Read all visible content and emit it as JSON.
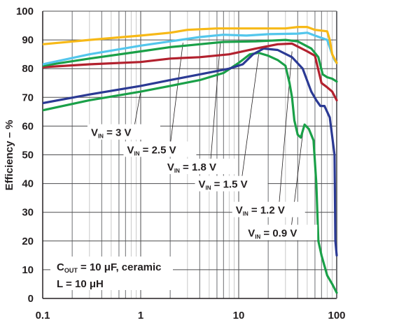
{
  "chart_data": {
    "type": "line",
    "title": "",
    "xlabel": "",
    "ylabel": "Efficiency – %",
    "xscale": "log",
    "xlim": [
      0.1,
      100
    ],
    "ylim": [
      0,
      100
    ],
    "grid": true,
    "x_ticks": [
      {
        "value": 0.1,
        "label": "0.1"
      },
      {
        "value": 1,
        "label": "1"
      },
      {
        "value": 10,
        "label": "10"
      },
      {
        "value": 100,
        "label": "100"
      }
    ],
    "y_ticks": [
      {
        "value": 0,
        "label": "0"
      },
      {
        "value": 10,
        "label": "10"
      },
      {
        "value": 20,
        "label": "20"
      },
      {
        "value": 30,
        "label": "30"
      },
      {
        "value": 40,
        "label": "40"
      },
      {
        "value": 50,
        "label": "50"
      },
      {
        "value": 60,
        "label": "60"
      },
      {
        "value": 70,
        "label": "70"
      },
      {
        "value": 80,
        "label": "80"
      },
      {
        "value": 90,
        "label": "90"
      },
      {
        "value": 100,
        "label": "100"
      }
    ],
    "series": [
      {
        "name": "VIN = 3 V",
        "sub": "IN",
        "pre": "V",
        "post": " = 3 V",
        "color": "#f7b917",
        "points": [
          [
            0.1,
            88.5
          ],
          [
            0.3,
            90
          ],
          [
            1,
            91.5
          ],
          [
            2,
            92.5
          ],
          [
            3,
            93.5
          ],
          [
            6,
            94
          ],
          [
            10,
            94
          ],
          [
            30,
            94
          ],
          [
            40,
            94.5
          ],
          [
            50,
            94.5
          ],
          [
            60,
            93.5
          ],
          [
            80,
            93
          ],
          [
            85,
            90
          ],
          [
            90,
            85
          ],
          [
            100,
            82
          ]
        ],
        "label_anchor": [
          1.0,
          72
        ],
        "label_pos": [
          0.6,
          57
        ]
      },
      {
        "name": "VIN = 2.5 V",
        "sub": "IN",
        "pre": "V",
        "post": " = 2.5 V",
        "color": "#53c6ec",
        "points": [
          [
            0.1,
            81.5
          ],
          [
            0.3,
            85
          ],
          [
            1,
            88
          ],
          [
            2,
            89.5
          ],
          [
            4,
            91
          ],
          [
            7,
            91.8
          ],
          [
            12,
            91.5
          ],
          [
            20,
            92
          ],
          [
            40,
            92.2
          ],
          [
            50,
            92.5
          ],
          [
            60,
            91.5
          ],
          [
            80,
            90
          ],
          [
            90,
            85
          ],
          [
            95,
            83
          ],
          [
            100,
            82
          ]
        ],
        "label_anchor": [
          2.7,
          89
        ],
        "label_pos": [
          1.4,
          51
        ]
      },
      {
        "name": "VIN = 1.8 V",
        "sub": "IN",
        "pre": "V",
        "post": " = 1.8 V",
        "color": "#1aa048",
        "points": [
          [
            0.1,
            81
          ],
          [
            0.3,
            83.5
          ],
          [
            1,
            86
          ],
          [
            2,
            87.5
          ],
          [
            4,
            88.5
          ],
          [
            7,
            89.3
          ],
          [
            15,
            89.5
          ],
          [
            30,
            90
          ],
          [
            40,
            89.5
          ],
          [
            55,
            87
          ],
          [
            65,
            84
          ],
          [
            72,
            78
          ],
          [
            80,
            77
          ],
          [
            90,
            76.5
          ],
          [
            100,
            75.5
          ]
        ],
        "label_anchor": [
          6.5,
          89
        ],
        "label_pos": [
          3.6,
          45
        ]
      },
      {
        "name": "VIN = 1.5 V",
        "sub": "IN",
        "pre": "V",
        "post": " = 1.5 V",
        "color": "#b2212e",
        "points": [
          [
            0.1,
            80.5
          ],
          [
            0.3,
            81.5
          ],
          [
            1,
            82.3
          ],
          [
            2,
            83.5
          ],
          [
            4,
            84
          ],
          [
            8,
            85
          ],
          [
            15,
            87
          ],
          [
            25,
            88.5
          ],
          [
            35,
            88.7
          ],
          [
            50,
            86
          ],
          [
            60,
            84.5
          ],
          [
            70,
            75
          ],
          [
            80,
            73.5
          ],
          [
            90,
            72
          ],
          [
            100,
            69
          ]
        ],
        "label_anchor": [
          16,
          85
        ],
        "label_pos": [
          7.5,
          39
        ]
      },
      {
        "name": "VIN = 1.2 V",
        "sub": "IN",
        "pre": "V",
        "post": " = 1.2 V",
        "color": "#2b3a94",
        "points": [
          [
            0.1,
            68
          ],
          [
            0.3,
            71
          ],
          [
            1,
            74
          ],
          [
            2,
            76
          ],
          [
            4,
            78
          ],
          [
            8,
            80
          ],
          [
            11,
            81.5
          ],
          [
            14,
            85
          ],
          [
            18,
            87
          ],
          [
            25,
            86.5
          ],
          [
            35,
            84
          ],
          [
            45,
            80
          ],
          [
            55,
            72
          ],
          [
            62,
            69
          ],
          [
            68,
            67
          ],
          [
            75,
            67
          ],
          [
            85,
            63
          ],
          [
            95,
            50
          ],
          [
            97,
            20
          ],
          [
            100,
            15
          ]
        ],
        "label_anchor": [
          35,
          86
        ],
        "label_pos": [
          18,
          30
        ]
      },
      {
        "name": "VIN = 0.9 V",
        "sub": "IN",
        "pre": "V",
        "post": " = 0.9 V",
        "color": "#1aa048",
        "points": [
          [
            0.1,
            65.5
          ],
          [
            0.3,
            69
          ],
          [
            1,
            72
          ],
          [
            2,
            74
          ],
          [
            4,
            76
          ],
          [
            7,
            78.5
          ],
          [
            10,
            82
          ],
          [
            13,
            85
          ],
          [
            16,
            85.5
          ],
          [
            20,
            84.5
          ],
          [
            25,
            83
          ],
          [
            30,
            81
          ],
          [
            33,
            75
          ],
          [
            35,
            70
          ],
          [
            37,
            62
          ],
          [
            40,
            57
          ],
          [
            43,
            56
          ],
          [
            47,
            60.5
          ],
          [
            52,
            59
          ],
          [
            58,
            55
          ],
          [
            62,
            40
          ],
          [
            65,
            20
          ],
          [
            70,
            15
          ],
          [
            80,
            8
          ],
          [
            90,
            5
          ],
          [
            100,
            2
          ]
        ],
        "label_anchor": [
          46,
          60
        ],
        "label_pos": [
          24,
          22
        ]
      }
    ],
    "annotations": [
      {
        "text_pre": "C",
        "text_sub": "OUT",
        "text_post": " = 10 μF, ceramic"
      },
      {
        "text_pre": "L = 10 μH",
        "text_sub": "",
        "text_post": ""
      }
    ]
  }
}
